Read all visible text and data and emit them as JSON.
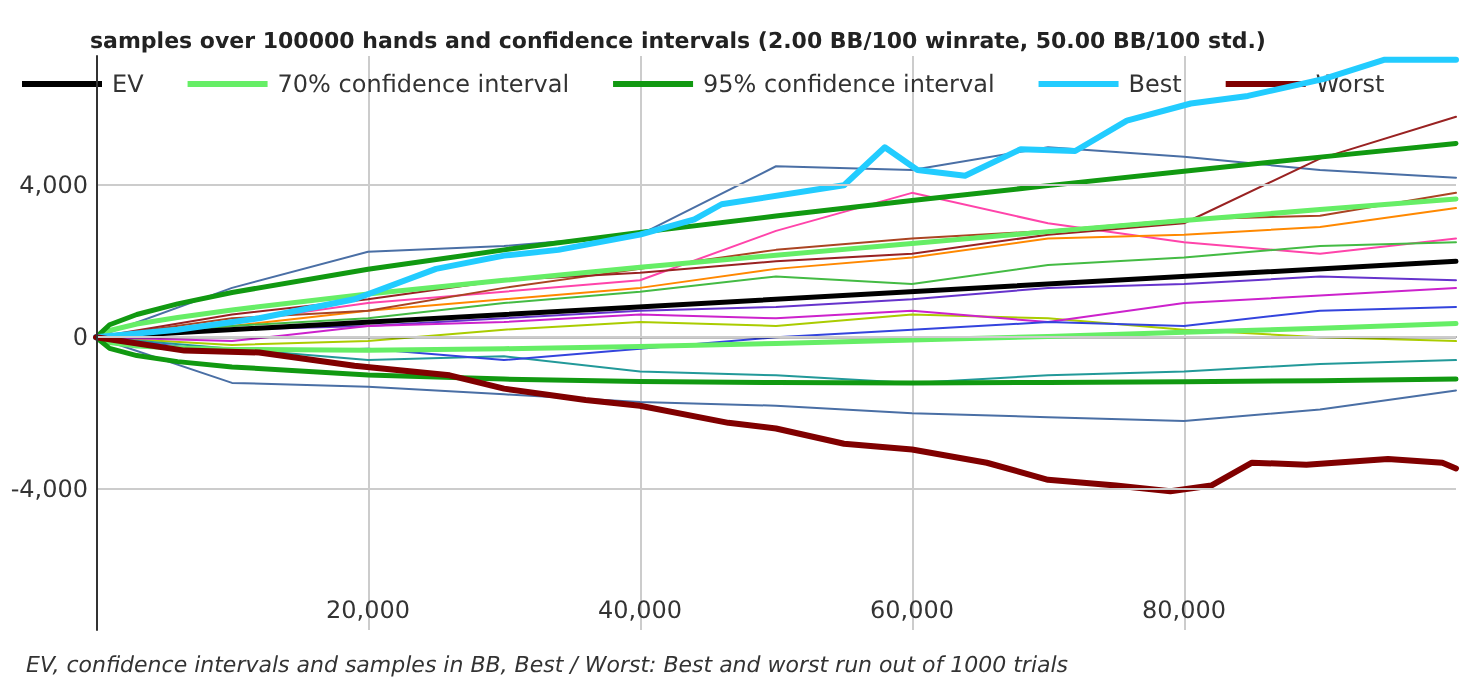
{
  "chart_data": {
    "type": "line",
    "title": "samples over 100000 hands and confidence intervals (2.00 BB/100 winrate, 50.00 BB/100 std.)",
    "annotations": [
      "EV, confidence intervals and samples in BB, Best / Worst: Best and worst run out of 1000 trials"
    ],
    "x": [
      0,
      10000,
      20000,
      30000,
      40000,
      50000,
      60000,
      70000,
      80000,
      90000,
      100000
    ],
    "series": [
      {
        "color": "#4a6fa5",
        "values": [
          0,
          1300,
          2250,
          2400,
          2700,
          4500,
          4400,
          5000,
          4750,
          4400,
          4200
        ]
      },
      {
        "color": "#4a6fa5",
        "values": [
          0,
          -1200,
          -1300,
          -1500,
          -1700,
          -1800,
          -2000,
          -2100,
          -2200,
          -1900,
          -1400
        ]
      },
      {
        "color": "#ff44aa",
        "values": [
          0,
          400,
          900,
          1200,
          1500,
          2800,
          3800,
          3000,
          2500,
          2200,
          2600
        ]
      },
      {
        "color": "#ff8800",
        "values": [
          0,
          300,
          700,
          1000,
          1300,
          1800,
          2100,
          2600,
          2700,
          2900,
          3400
        ]
      },
      {
        "color": "#aacc00",
        "values": [
          0,
          -200,
          -100,
          200,
          400,
          300,
          600,
          500,
          200,
          0,
          -100
        ]
      },
      {
        "color": "#6633cc",
        "values": [
          0,
          200,
          300,
          500,
          700,
          800,
          1000,
          1300,
          1400,
          1600,
          1500
        ]
      },
      {
        "color": "#229999",
        "values": [
          0,
          -300,
          -600,
          -500,
          -900,
          -1000,
          -1200,
          -1000,
          -900,
          -700,
          -600
        ]
      },
      {
        "color": "#aa4422",
        "values": [
          0,
          500,
          700,
          1300,
          1800,
          2300,
          2600,
          2800,
          3100,
          3200,
          3800
        ]
      },
      {
        "color": "#44bb44",
        "values": [
          0,
          300,
          500,
          900,
          1200,
          1600,
          1400,
          1900,
          2100,
          2400,
          2500
        ]
      },
      {
        "color": "#cc22cc",
        "values": [
          0,
          -100,
          300,
          400,
          600,
          500,
          700,
          400,
          900,
          1100,
          1300
        ]
      },
      {
        "color": "#3344dd",
        "values": [
          0,
          -400,
          -300,
          -600,
          -300,
          0,
          200,
          400,
          300,
          700,
          800
        ]
      },
      {
        "color": "#992222",
        "values": [
          0,
          600,
          1000,
          1500,
          1700,
          2000,
          2200,
          2700,
          3000,
          4700,
          5800
        ]
      },
      {
        "name": "EV",
        "color": "#000000",
        "x": [
          0,
          100000
        ],
        "values": [
          0,
          2000
        ]
      },
      {
        "name": "70% confidence interval",
        "color": "#66ee66",
        "x": [
          0,
          1000,
          3000,
          6000,
          10000,
          20000,
          30000,
          40000,
          50000,
          60000,
          70000,
          80000,
          90000,
          100000
        ],
        "values": [
          0,
          180,
          350,
          520,
          720,
          1140,
          1500,
          1840,
          2160,
          2470,
          2780,
          3070,
          3360,
          3640
        ]
      },
      {
        "color": "#66ee66",
        "x": [
          0,
          1000,
          3000,
          6000,
          10000,
          20000,
          30000,
          40000,
          50000,
          60000,
          70000,
          80000,
          90000,
          100000
        ],
        "values": [
          0,
          -140,
          -230,
          -280,
          -320,
          -340,
          -300,
          -240,
          -160,
          -70,
          20,
          130,
          240,
          360
        ]
      },
      {
        "name": "95% confidence interval",
        "color": "#119911",
        "x": [
          0,
          1000,
          3000,
          6000,
          10000,
          20000,
          30000,
          40000,
          50000,
          60000,
          70000,
          80000,
          90000,
          100000
        ],
        "values": [
          0,
          330,
          600,
          880,
          1180,
          1790,
          2300,
          2760,
          3190,
          3600,
          3990,
          4370,
          4740,
          5100
        ]
      },
      {
        "color": "#119911",
        "x": [
          0,
          1000,
          3000,
          6000,
          10000,
          20000,
          30000,
          40000,
          50000,
          60000,
          70000,
          80000,
          90000,
          100000
        ],
        "values": [
          0,
          -290,
          -480,
          -640,
          -780,
          -990,
          -1100,
          -1160,
          -1190,
          -1200,
          -1190,
          -1170,
          -1140,
          -1100
        ]
      },
      {
        "name": "Best",
        "color": "#22ccff",
        "x": [
          0,
          6000,
          12000,
          19000,
          25000,
          30000,
          34000,
          40000,
          44000,
          46000,
          55000,
          58000,
          60400,
          63900,
          68000,
          72000,
          75800,
          80500,
          84700,
          90300,
          94700,
          100000
        ],
        "values": [
          0,
          200,
          500,
          1000,
          1800,
          2150,
          2300,
          2700,
          3100,
          3500,
          4000,
          5000,
          4400,
          4250,
          4950,
          4900,
          5700,
          6150,
          6350,
          6800,
          7300,
          7300
        ]
      },
      {
        "name": "Worst",
        "color": "#800000",
        "x": [
          0,
          6500,
          12000,
          19000,
          26000,
          30000,
          36000,
          40000,
          46500,
          50000,
          55000,
          60000,
          65500,
          70000,
          75000,
          79000,
          82000,
          85000,
          89000,
          95000,
          99000,
          100000
        ],
        "values": [
          0,
          -350,
          -400,
          -750,
          -1000,
          -1350,
          -1650,
          -1800,
          -2250,
          -2400,
          -2800,
          -2950,
          -3300,
          -3750,
          -3900,
          -4050,
          -3900,
          -3300,
          -3350,
          -3200,
          -3300,
          -3450
        ]
      }
    ],
    "xlim": [
      0,
      100000
    ],
    "xticks": [
      {
        "value": 20000,
        "label": "20,000"
      },
      {
        "value": 40000,
        "label": "40,000"
      },
      {
        "value": 60000,
        "label": "60,000"
      },
      {
        "value": 80000,
        "label": "80,000"
      }
    ],
    "ylim": [
      -7700,
      7400
    ],
    "yticks": [
      {
        "value": -4000,
        "label": "-4,000"
      },
      0,
      {
        "value": 4000,
        "label": "4,000"
      }
    ],
    "ref_lines": [
      {
        "axis": "y",
        "value": 0,
        "color": "#000000"
      }
    ],
    "grid": true,
    "legend": "top left",
    "marker": "none",
    "line_style": "solid"
  }
}
